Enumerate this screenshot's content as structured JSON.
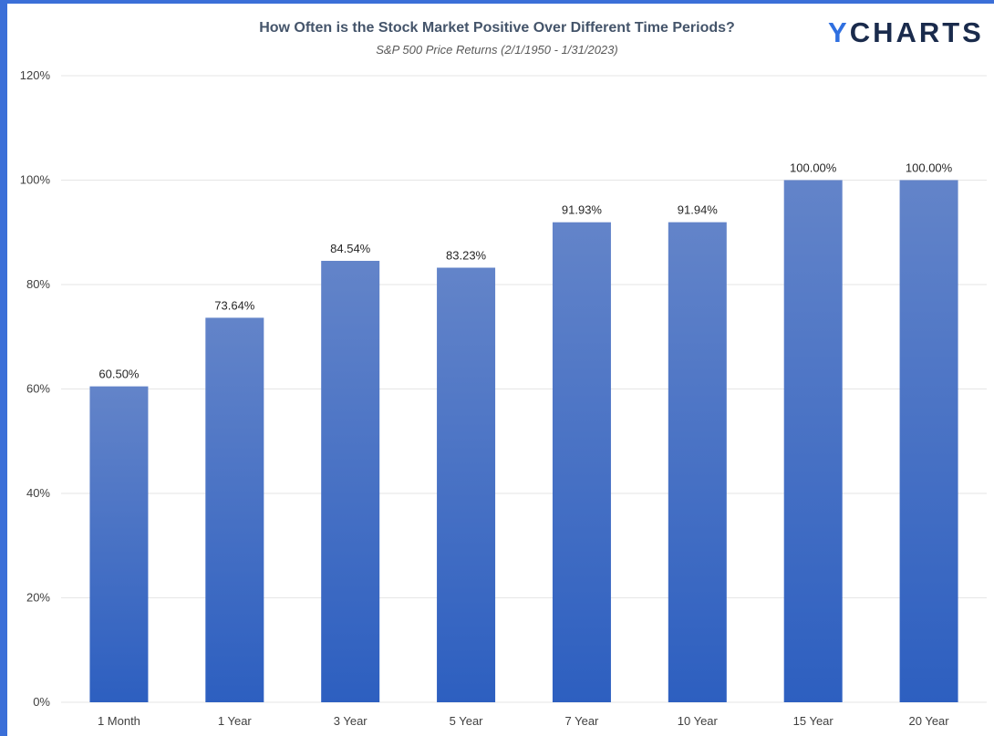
{
  "page": {
    "logo_prefix": "Y",
    "logo_rest": "CHARTS"
  },
  "chart_data": {
    "type": "bar",
    "title": "How Often is the Stock Market Positive Over Different Time Periods?",
    "subtitle": "S&P 500 Price Returns (2/1/1950 - 1/31/2023)",
    "xlabel": "",
    "ylabel": "",
    "categories": [
      "1 Month",
      "1 Year",
      "3 Year",
      "5 Year",
      "7 Year",
      "10 Year",
      "15 Year",
      "20 Year"
    ],
    "values": [
      60.5,
      73.64,
      84.54,
      83.23,
      91.93,
      91.94,
      100.0,
      100.0
    ],
    "data_labels": [
      "60.50%",
      "73.64%",
      "84.54%",
      "83.23%",
      "91.93%",
      "91.94%",
      "100.00%",
      "100.00%"
    ],
    "ylim": [
      0,
      120
    ],
    "yticks": [
      0,
      20,
      40,
      60,
      80,
      100,
      120
    ],
    "ytick_labels": [
      "0%",
      "20%",
      "40%",
      "60%",
      "80%",
      "100%",
      "120%"
    ],
    "grid": true,
    "legend": "none",
    "colors": {
      "bar_top": "#6384c9",
      "bar_bottom": "#2d5fc0",
      "gridline": "#e6e6e6",
      "border": "#3b6fd8"
    }
  }
}
